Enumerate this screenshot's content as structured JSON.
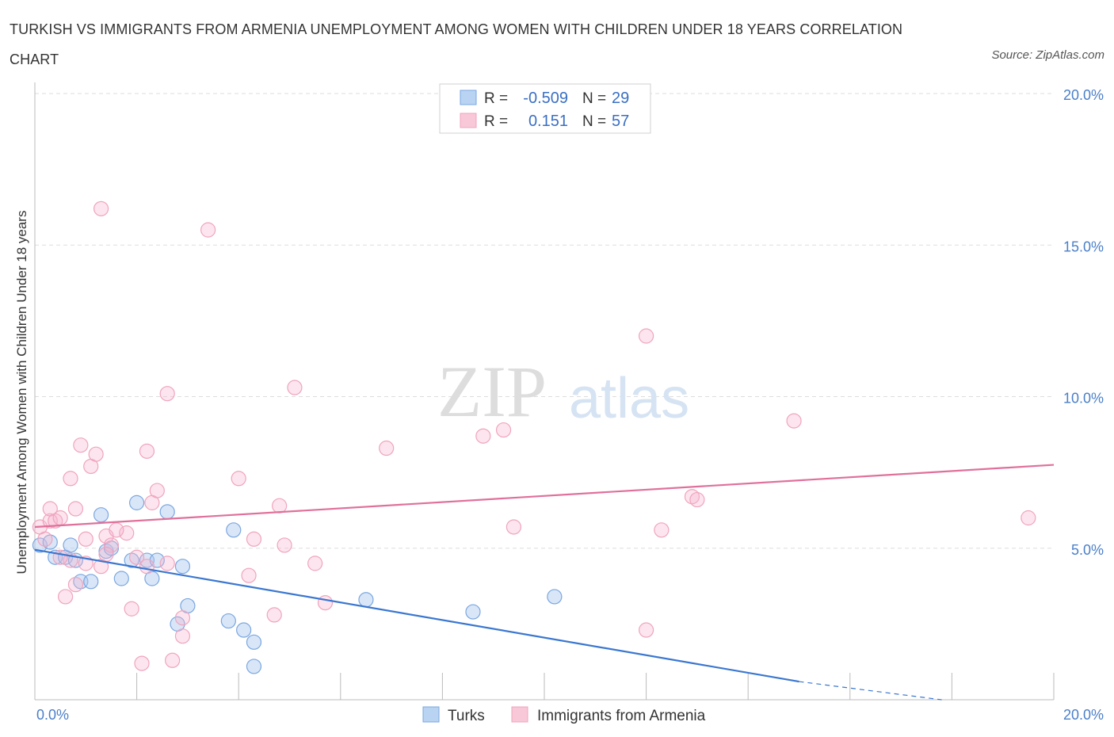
{
  "header": {
    "title": "TURKISH VS IMMIGRANTS FROM ARMENIA UNEMPLOYMENT AMONG WOMEN WITH CHILDREN UNDER 18 YEARS CORRELATION CHART",
    "source": "Source: ZipAtlas.com"
  },
  "watermark": {
    "zip": "ZIP",
    "atlas": "atlas"
  },
  "legend_box": {
    "rows": [
      {
        "r_label": "R =",
        "r_value": "-0.509",
        "n_label": "N =",
        "n_value": "29"
      },
      {
        "r_label": "R =",
        "r_value": "0.151",
        "n_label": "N =",
        "n_value": "57"
      }
    ]
  },
  "chart_data": {
    "type": "scatter",
    "title": "TURKISH VS IMMIGRANTS FROM ARMENIA UNEMPLOYMENT AMONG WOMEN WITH CHILDREN UNDER 18 YEARS CORRELATION CHART",
    "xlabel": "",
    "ylabel": "Unemployment Among Women with Children Under 18 years",
    "xlim": [
      0,
      20
    ],
    "ylim": [
      0,
      20
    ],
    "x_tick_labels": [
      "0.0%",
      "20.0%"
    ],
    "y_ticks": [
      5,
      10,
      15,
      20
    ],
    "y_tick_labels": [
      "5.0%",
      "10.0%",
      "15.0%",
      "20.0%"
    ],
    "grid": true,
    "legend_position": "bottom-center",
    "series": [
      {
        "name": "Turks",
        "color": "#7aa7e0",
        "line_color": "#3a77d0",
        "points": [
          [
            0.1,
            5.1
          ],
          [
            0.3,
            5.2
          ],
          [
            0.4,
            4.7
          ],
          [
            0.6,
            4.7
          ],
          [
            0.7,
            5.1
          ],
          [
            0.8,
            4.6
          ],
          [
            0.9,
            3.9
          ],
          [
            1.1,
            3.9
          ],
          [
            1.3,
            6.1
          ],
          [
            1.4,
            4.9
          ],
          [
            1.5,
            5.0
          ],
          [
            1.7,
            4.0
          ],
          [
            1.9,
            4.6
          ],
          [
            2.0,
            6.5
          ],
          [
            2.2,
            4.6
          ],
          [
            2.3,
            4.0
          ],
          [
            2.4,
            4.6
          ],
          [
            2.6,
            6.2
          ],
          [
            2.9,
            4.4
          ],
          [
            2.8,
            2.5
          ],
          [
            3.0,
            3.1
          ],
          [
            3.8,
            2.6
          ],
          [
            3.9,
            5.6
          ],
          [
            4.1,
            2.3
          ],
          [
            4.3,
            1.1
          ],
          [
            4.3,
            1.9
          ],
          [
            6.5,
            3.3
          ],
          [
            8.6,
            2.9
          ],
          [
            10.2,
            3.4
          ]
        ],
        "trend": {
          "x": [
            0,
            15.0
          ],
          "y": [
            4.95,
            0.6
          ]
        },
        "trend_dashed": {
          "x": [
            15.0,
            17.8
          ],
          "y": [
            0.6,
            0.0
          ]
        }
      },
      {
        "name": "Immigrants from Armenia",
        "color": "#f0a4bd",
        "line_color": "#e0709a",
        "points": [
          [
            0.1,
            5.7
          ],
          [
            0.2,
            5.3
          ],
          [
            0.3,
            5.9
          ],
          [
            0.3,
            6.3
          ],
          [
            0.4,
            5.9
          ],
          [
            0.5,
            6.0
          ],
          [
            0.6,
            3.4
          ],
          [
            0.7,
            4.6
          ],
          [
            0.7,
            7.3
          ],
          [
            0.8,
            3.8
          ],
          [
            0.8,
            6.3
          ],
          [
            0.9,
            8.4
          ],
          [
            1.0,
            5.3
          ],
          [
            1.1,
            7.7
          ],
          [
            1.2,
            8.1
          ],
          [
            1.3,
            4.4
          ],
          [
            1.4,
            5.4
          ],
          [
            1.5,
            5.1
          ],
          [
            1.3,
            16.2
          ],
          [
            1.4,
            4.8
          ],
          [
            1.8,
            5.5
          ],
          [
            1.9,
            3.0
          ],
          [
            2.0,
            4.7
          ],
          [
            2.1,
            1.2
          ],
          [
            2.2,
            8.2
          ],
          [
            2.3,
            6.5
          ],
          [
            2.4,
            6.9
          ],
          [
            2.6,
            4.5
          ],
          [
            2.6,
            10.1
          ],
          [
            2.7,
            1.3
          ],
          [
            2.9,
            2.7
          ],
          [
            2.9,
            2.1
          ],
          [
            3.4,
            15.5
          ],
          [
            4.0,
            7.3
          ],
          [
            4.2,
            4.1
          ],
          [
            4.3,
            5.3
          ],
          [
            4.7,
            2.8
          ],
          [
            4.8,
            6.4
          ],
          [
            4.9,
            5.1
          ],
          [
            5.1,
            10.3
          ],
          [
            5.5,
            4.5
          ],
          [
            5.7,
            3.2
          ],
          [
            6.9,
            8.3
          ],
          [
            8.8,
            8.7
          ],
          [
            9.2,
            8.9
          ],
          [
            9.4,
            5.7
          ],
          [
            12.0,
            12.0
          ],
          [
            12.0,
            2.3
          ],
          [
            12.3,
            5.6
          ],
          [
            12.9,
            6.7
          ],
          [
            13.0,
            6.6
          ],
          [
            14.9,
            9.2
          ],
          [
            19.5,
            6.0
          ],
          [
            0.5,
            4.7
          ],
          [
            1.0,
            4.5
          ],
          [
            1.6,
            5.6
          ],
          [
            2.2,
            4.4
          ]
        ],
        "trend": {
          "x": [
            0,
            20.0
          ],
          "y": [
            5.7,
            7.75
          ]
        }
      }
    ]
  }
}
